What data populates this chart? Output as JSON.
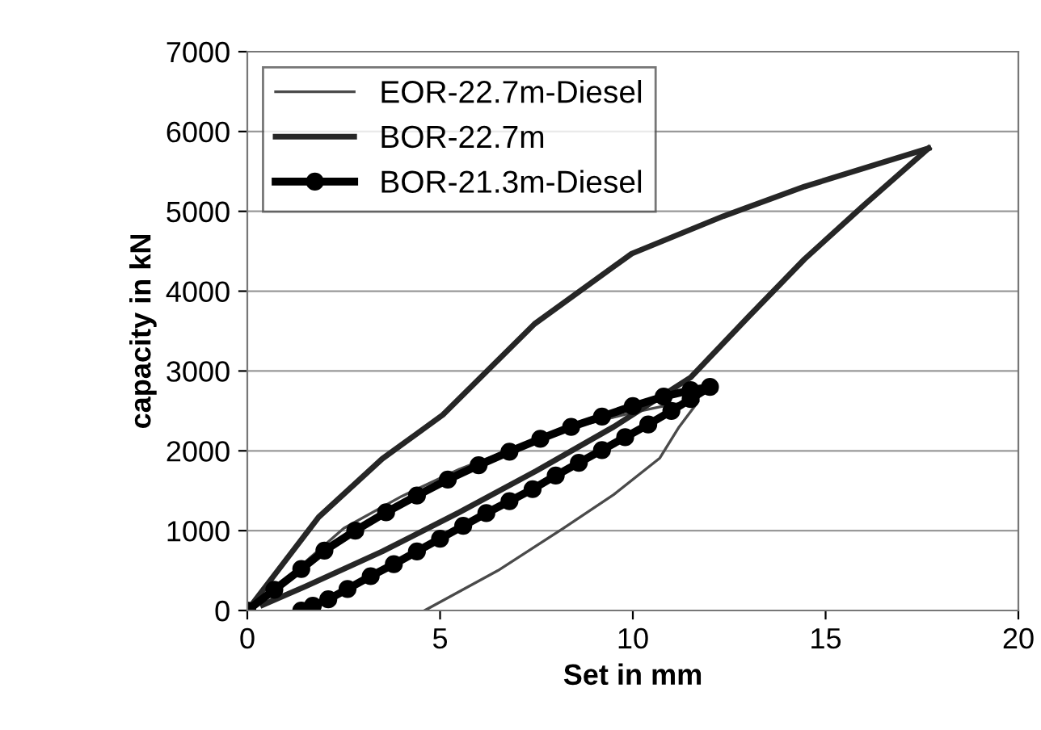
{
  "chart_data": {
    "type": "line",
    "xlabel": "Set in mm",
    "ylabel": "capacity in kN",
    "xlim": [
      0,
      20
    ],
    "ylim": [
      0,
      7000
    ],
    "xticks": [
      0,
      5,
      10,
      15,
      20
    ],
    "yticks": [
      0,
      1000,
      2000,
      3000,
      4000,
      5000,
      6000,
      7000
    ],
    "grid": "y",
    "legend": "top left",
    "line_style": "solid",
    "series": [
      {
        "name": "EOR-22.7m-Diesel",
        "color": "#4a4a4a",
        "marker": "none",
        "x": [
          0,
          1.2,
          2.5,
          4,
          5.5,
          7,
          8.5,
          10,
          11,
          11.7,
          11.2,
          10.7,
          9.5,
          8.2,
          6.5,
          4.6
        ],
        "values": [
          0,
          480,
          1030,
          1430,
          1770,
          2050,
          2300,
          2480,
          2580,
          2620,
          2300,
          1910,
          1450,
          1030,
          500,
          0
        ]
      },
      {
        "name": "BOR-22.7m",
        "color": "#262626",
        "marker": "none",
        "x": [
          0,
          1.85,
          3.5,
          5.07,
          7.45,
          9.97,
          12.35,
          14.45,
          17.67
        ],
        "values": [
          0,
          1170,
          1900,
          2450,
          3590,
          4470,
          4940,
          5310,
          5790
        ]
      },
      {
        "color": "#262626",
        "marker": "none",
        "x": [
          17.67,
          16,
          14.45,
          13,
          11.5,
          9.5,
          7.5,
          5.5,
          3.5,
          1.5,
          0.4
        ],
        "values": [
          5790,
          5080,
          4400,
          3680,
          2920,
          2300,
          1750,
          1230,
          740,
          300,
          70
        ]
      },
      {
        "name": "BOR-21.3m-Diesel",
        "color": "#000000",
        "marker": "circle",
        "x": [
          0,
          0.7,
          1.4,
          2,
          2.8,
          3.6,
          4.4,
          5.2,
          6,
          6.8,
          7.6,
          8.4,
          9.2,
          10,
          10.8,
          11.5,
          12,
          11.5,
          11,
          10.4,
          9.8,
          9.2,
          8.6,
          8,
          7.4,
          6.8,
          6.2,
          5.6,
          5,
          4.4,
          3.8,
          3.2,
          2.6,
          2.1,
          1.7,
          1.4
        ],
        "values": [
          0,
          260,
          520,
          750,
          1000,
          1230,
          1440,
          1640,
          1820,
          1990,
          2150,
          2300,
          2430,
          2560,
          2680,
          2760,
          2800,
          2650,
          2500,
          2330,
          2170,
          2010,
          1850,
          1690,
          1520,
          1370,
          1220,
          1060,
          900,
          740,
          580,
          430,
          270,
          140,
          60,
          0
        ]
      }
    ]
  }
}
